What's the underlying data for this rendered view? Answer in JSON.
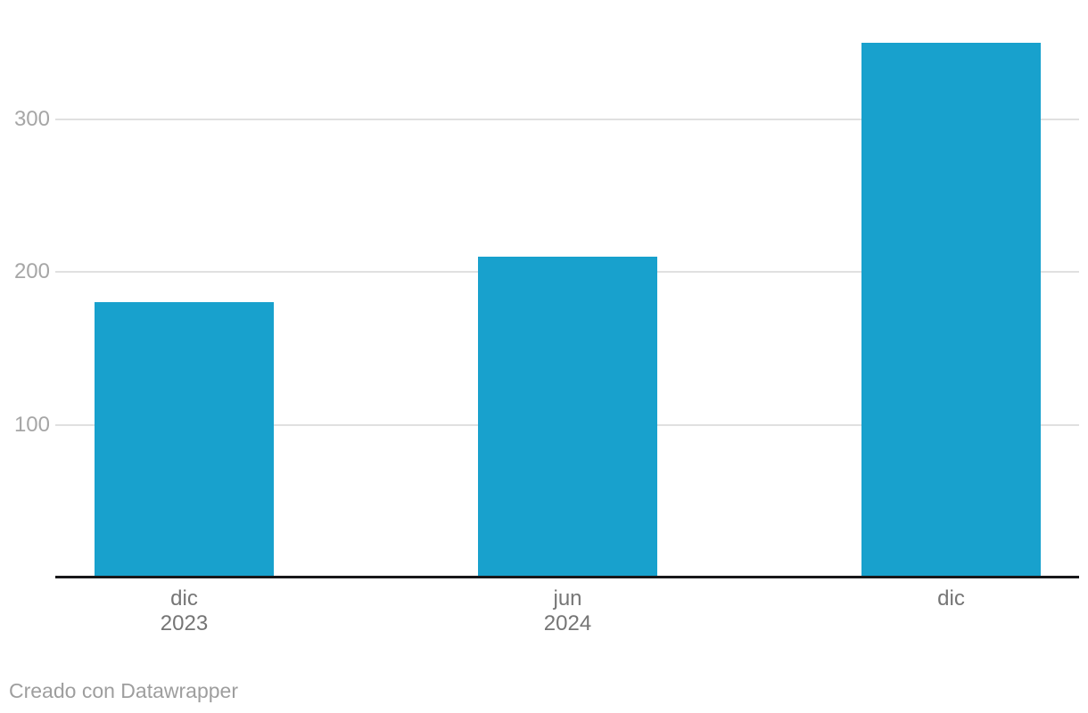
{
  "chart_data": {
    "type": "bar",
    "categories": [
      "dic 2023",
      "jun 2024",
      "dic 2024"
    ],
    "values": [
      180,
      210,
      350
    ],
    "x_tick_labels": [
      {
        "line1": "dic",
        "line2": "2023"
      },
      {
        "line1": "jun",
        "line2": "2024"
      },
      {
        "line1": "dic",
        "line2": ""
      }
    ],
    "y_ticks": [
      100,
      200,
      300
    ],
    "ylim": [
      0,
      360
    ],
    "title": "",
    "xlabel": "",
    "ylabel": "",
    "grid": "horizontal-only",
    "legend": "none",
    "series_color": "#18a1cd"
  },
  "colors": {
    "bar": "#18a1cd",
    "gridline": "#e0e0e0",
    "axis_line": "#18181a",
    "y_tick_text": "#a6a6a6",
    "x_tick_text": "#757575",
    "attribution_text": "#9e9e9e",
    "background": "#ffffff"
  },
  "footer": {
    "attribution": "Creado con Datawrapper"
  }
}
